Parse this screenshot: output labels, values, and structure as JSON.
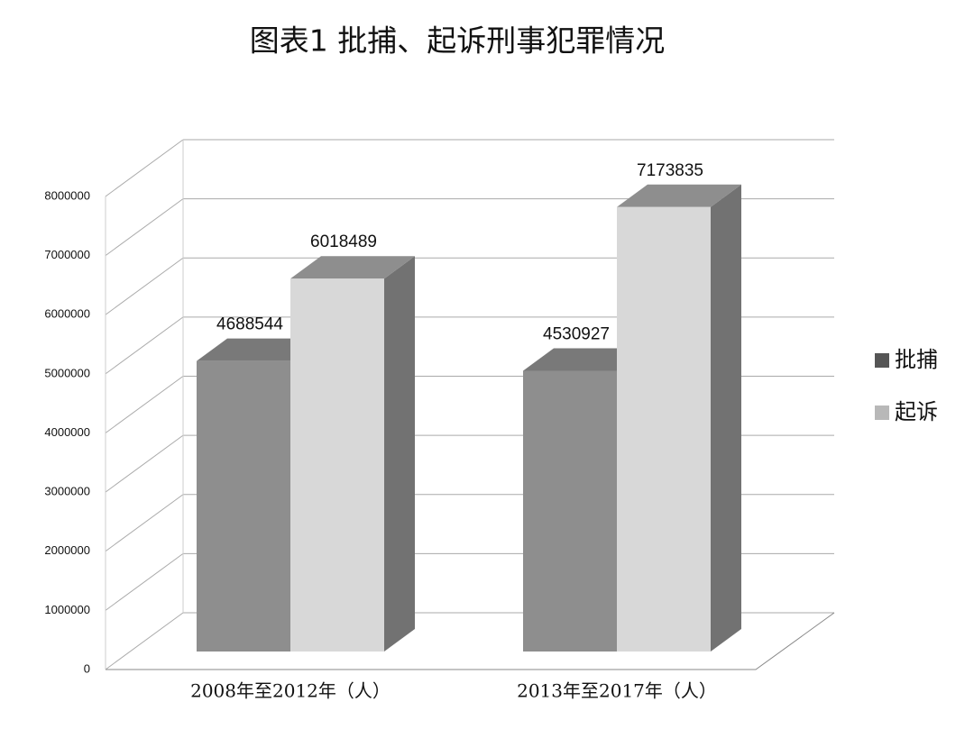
{
  "chart_data": {
    "type": "bar3d",
    "title": "图表1  批捕、起诉刑事犯罪情况",
    "categories": [
      "2008年至2012年（人）",
      "2013年至2017年（人）"
    ],
    "series": [
      {
        "name": "批捕",
        "color": "#8e8e8e",
        "values": [
          4688544,
          4530927
        ]
      },
      {
        "name": "起诉",
        "color": "#d8d8d8",
        "values": [
          6018489,
          7173835
        ]
      }
    ],
    "ylim": [
      0,
      8000000
    ],
    "yticks": [
      0,
      1000000,
      2000000,
      3000000,
      4000000,
      5000000,
      6000000,
      7000000,
      8000000
    ],
    "grid": true,
    "legend": "right"
  }
}
